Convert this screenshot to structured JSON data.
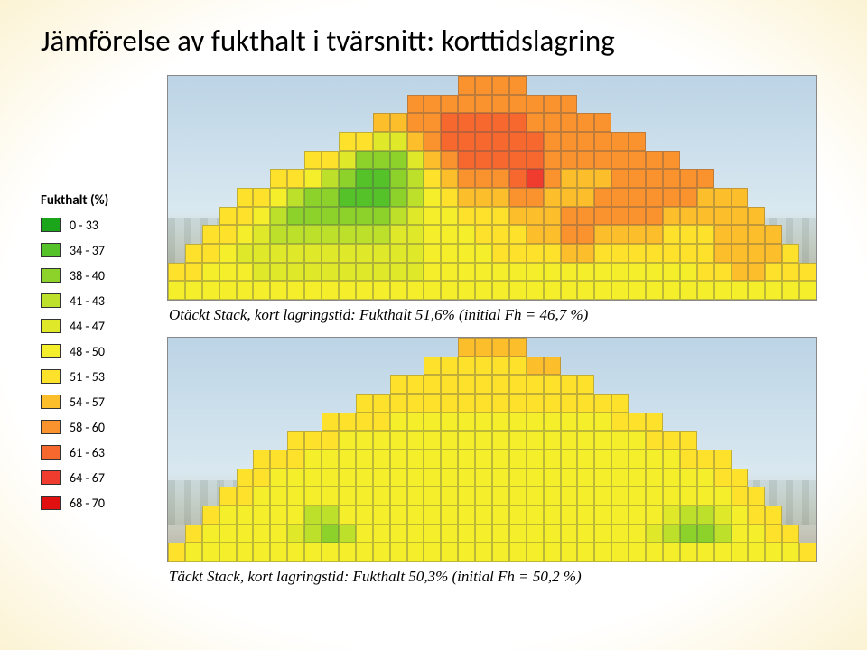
{
  "title": "Jämförelse av fukthalt i tvärsnitt: korttidslagring",
  "legend": {
    "title": "Fukthalt (%)",
    "bins": [
      {
        "label": "0 - 33",
        "color": "#1aa51a"
      },
      {
        "label": "34 - 37",
        "color": "#56c22a"
      },
      {
        "label": "38 - 40",
        "color": "#8dd22a"
      },
      {
        "label": "41 - 43",
        "color": "#bde02a"
      },
      {
        "label": "44 - 47",
        "color": "#e0e82a"
      },
      {
        "label": "48 - 50",
        "color": "#f5ee2a"
      },
      {
        "label": "51 - 53",
        "color": "#fde12a"
      },
      {
        "label": "54 - 57",
        "color": "#fcbf2b"
      },
      {
        "label": "58 - 60",
        "color": "#fa932d"
      },
      {
        "label": "61 - 63",
        "color": "#f6682e"
      },
      {
        "label": "64 - 67",
        "color": "#ef3c2e"
      },
      {
        "label": "68 - 70",
        "color": "#e01010"
      }
    ]
  },
  "chart1": {
    "caption": "Otäckt Stack, kort lagringstid: Fukthalt 51,6% (initial Fh = 46,7 %)",
    "type": "heatmap",
    "cols": 38,
    "rows": 12,
    "cell_border_color": "#555555",
    "background": "photo",
    "grid": [
      [
        -1,
        -1,
        -1,
        -1,
        -1,
        -1,
        -1,
        -1,
        -1,
        -1,
        -1,
        -1,
        -1,
        -1,
        -1,
        -1,
        -1,
        8,
        8,
        8,
        8,
        -1,
        -1,
        -1,
        -1,
        -1,
        -1,
        -1,
        -1,
        -1,
        -1,
        -1,
        -1,
        -1,
        -1,
        -1,
        -1,
        -1
      ],
      [
        -1,
        -1,
        -1,
        -1,
        -1,
        -1,
        -1,
        -1,
        -1,
        -1,
        -1,
        -1,
        -1,
        -1,
        8,
        8,
        8,
        8,
        8,
        8,
        8,
        8,
        8,
        8,
        -1,
        -1,
        -1,
        -1,
        -1,
        -1,
        -1,
        -1,
        -1,
        -1,
        -1,
        -1,
        -1,
        -1
      ],
      [
        -1,
        -1,
        -1,
        -1,
        -1,
        -1,
        -1,
        -1,
        -1,
        -1,
        -1,
        -1,
        7,
        7,
        8,
        8,
        9,
        9,
        9,
        9,
        9,
        8,
        8,
        8,
        8,
        8,
        -1,
        -1,
        -1,
        -1,
        -1,
        -1,
        -1,
        -1,
        -1,
        -1,
        -1,
        -1
      ],
      [
        -1,
        -1,
        -1,
        -1,
        -1,
        -1,
        -1,
        -1,
        -1,
        -1,
        6,
        6,
        4,
        4,
        7,
        8,
        9,
        9,
        9,
        9,
        9,
        9,
        8,
        8,
        8,
        8,
        8,
        8,
        -1,
        -1,
        -1,
        -1,
        -1,
        -1,
        -1,
        -1,
        -1,
        -1
      ],
      [
        -1,
        -1,
        -1,
        -1,
        -1,
        -1,
        -1,
        -1,
        6,
        6,
        4,
        2,
        2,
        2,
        4,
        7,
        8,
        9,
        9,
        9,
        9,
        9,
        8,
        8,
        8,
        8,
        8,
        8,
        8,
        8,
        -1,
        -1,
        -1,
        -1,
        -1,
        -1,
        -1,
        -1
      ],
      [
        -1,
        -1,
        -1,
        -1,
        -1,
        -1,
        6,
        6,
        5,
        3,
        2,
        1,
        1,
        2,
        3,
        6,
        7,
        8,
        8,
        8,
        9,
        10,
        8,
        7,
        7,
        7,
        8,
        8,
        8,
        8,
        8,
        8,
        -1,
        -1,
        -1,
        -1,
        -1,
        -1
      ],
      [
        -1,
        -1,
        -1,
        -1,
        6,
        6,
        5,
        3,
        2,
        2,
        1,
        1,
        1,
        2,
        3,
        5,
        6,
        7,
        7,
        7,
        8,
        8,
        7,
        7,
        7,
        8,
        8,
        8,
        8,
        8,
        8,
        7,
        7,
        7,
        -1,
        -1,
        -1,
        -1
      ],
      [
        -1,
        -1,
        -1,
        6,
        6,
        5,
        3,
        2,
        2,
        2,
        2,
        2,
        2,
        3,
        4,
        5,
        5,
        6,
        6,
        6,
        7,
        7,
        7,
        8,
        8,
        8,
        8,
        8,
        8,
        7,
        7,
        7,
        7,
        7,
        7,
        -1,
        -1,
        -1
      ],
      [
        -1,
        -1,
        6,
        6,
        5,
        4,
        3,
        3,
        3,
        3,
        3,
        3,
        3,
        4,
        4,
        5,
        5,
        5,
        6,
        6,
        6,
        7,
        7,
        8,
        8,
        7,
        7,
        7,
        7,
        6,
        6,
        6,
        7,
        7,
        7,
        7,
        -1,
        -1
      ],
      [
        -1,
        6,
        6,
        5,
        4,
        4,
        4,
        4,
        4,
        4,
        4,
        4,
        4,
        4,
        4,
        5,
        5,
        5,
        5,
        6,
        6,
        6,
        6,
        7,
        7,
        6,
        6,
        6,
        6,
        6,
        6,
        6,
        7,
        7,
        7,
        7,
        6,
        -1
      ],
      [
        6,
        6,
        5,
        5,
        5,
        4,
        4,
        4,
        4,
        4,
        4,
        4,
        4,
        4,
        4,
        5,
        5,
        5,
        5,
        5,
        5,
        5,
        5,
        5,
        5,
        5,
        5,
        5,
        5,
        5,
        5,
        6,
        6,
        7,
        7,
        6,
        6,
        6
      ],
      [
        5,
        5,
        5,
        5,
        5,
        5,
        5,
        5,
        5,
        5,
        5,
        5,
        5,
        5,
        5,
        5,
        5,
        5,
        5,
        5,
        5,
        5,
        5,
        5,
        5,
        5,
        5,
        5,
        5,
        5,
        5,
        5,
        5,
        5,
        5,
        5,
        5,
        5
      ]
    ]
  },
  "chart2": {
    "caption": "Täckt Stack, kort lagringstid: Fukthalt 50,3% (initial Fh = 50,2 %)",
    "type": "heatmap",
    "cols": 38,
    "rows": 12,
    "cell_border_color": "#555555",
    "background": "photo",
    "grid": [
      [
        -1,
        -1,
        -1,
        -1,
        -1,
        -1,
        -1,
        -1,
        -1,
        -1,
        -1,
        -1,
        -1,
        -1,
        -1,
        -1,
        -1,
        7,
        7,
        7,
        7,
        -1,
        -1,
        -1,
        -1,
        -1,
        -1,
        -1,
        -1,
        -1,
        -1,
        -1,
        -1,
        -1,
        -1,
        -1,
        -1,
        -1
      ],
      [
        -1,
        -1,
        -1,
        -1,
        -1,
        -1,
        -1,
        -1,
        -1,
        -1,
        -1,
        -1,
        -1,
        -1,
        -1,
        6,
        6,
        6,
        6,
        6,
        6,
        7,
        7,
        -1,
        -1,
        -1,
        -1,
        -1,
        -1,
        -1,
        -1,
        -1,
        -1,
        -1,
        -1,
        -1,
        -1,
        -1
      ],
      [
        -1,
        -1,
        -1,
        -1,
        -1,
        -1,
        -1,
        -1,
        -1,
        -1,
        -1,
        -1,
        -1,
        6,
        6,
        6,
        6,
        6,
        6,
        6,
        6,
        6,
        6,
        6,
        6,
        -1,
        -1,
        -1,
        -1,
        -1,
        -1,
        -1,
        -1,
        -1,
        -1,
        -1,
        -1,
        -1
      ],
      [
        -1,
        -1,
        -1,
        -1,
        -1,
        -1,
        -1,
        -1,
        -1,
        -1,
        -1,
        6,
        6,
        6,
        6,
        6,
        6,
        6,
        6,
        6,
        6,
        6,
        6,
        6,
        6,
        6,
        6,
        -1,
        -1,
        -1,
        -1,
        -1,
        -1,
        -1,
        -1,
        -1,
        -1,
        -1
      ],
      [
        -1,
        -1,
        -1,
        -1,
        -1,
        -1,
        -1,
        -1,
        -1,
        6,
        6,
        6,
        6,
        5,
        5,
        5,
        5,
        5,
        5,
        5,
        5,
        5,
        5,
        5,
        5,
        5,
        6,
        6,
        6,
        -1,
        -1,
        -1,
        -1,
        -1,
        -1,
        -1,
        -1,
        -1
      ],
      [
        -1,
        -1,
        -1,
        -1,
        -1,
        -1,
        -1,
        6,
        6,
        6,
        5,
        5,
        5,
        5,
        5,
        5,
        5,
        5,
        5,
        5,
        5,
        5,
        5,
        5,
        5,
        5,
        5,
        5,
        6,
        6,
        6,
        -1,
        -1,
        -1,
        -1,
        -1,
        -1,
        -1
      ],
      [
        -1,
        -1,
        -1,
        -1,
        -1,
        6,
        6,
        6,
        5,
        5,
        5,
        5,
        5,
        5,
        5,
        5,
        5,
        5,
        5,
        5,
        5,
        5,
        5,
        5,
        5,
        5,
        5,
        5,
        5,
        5,
        6,
        6,
        6,
        -1,
        -1,
        -1,
        -1,
        -1
      ],
      [
        -1,
        -1,
        -1,
        -1,
        6,
        6,
        5,
        5,
        5,
        5,
        5,
        5,
        5,
        5,
        5,
        5,
        5,
        5,
        5,
        5,
        5,
        5,
        5,
        5,
        5,
        5,
        5,
        5,
        5,
        5,
        5,
        5,
        6,
        6,
        -1,
        -1,
        -1,
        -1
      ],
      [
        -1,
        -1,
        -1,
        6,
        6,
        5,
        5,
        5,
        5,
        5,
        5,
        5,
        5,
        5,
        5,
        5,
        5,
        5,
        5,
        5,
        5,
        5,
        5,
        5,
        5,
        5,
        5,
        5,
        5,
        5,
        5,
        5,
        5,
        6,
        6,
        -1,
        -1,
        -1
      ],
      [
        -1,
        -1,
        6,
        5,
        5,
        5,
        5,
        5,
        3,
        3,
        5,
        5,
        5,
        5,
        5,
        5,
        5,
        5,
        5,
        5,
        5,
        5,
        5,
        5,
        5,
        5,
        5,
        5,
        5,
        4,
        3,
        3,
        4,
        5,
        6,
        6,
        -1,
        -1
      ],
      [
        -1,
        6,
        5,
        5,
        5,
        5,
        5,
        4,
        3,
        2,
        3,
        5,
        5,
        5,
        5,
        5,
        5,
        5,
        5,
        5,
        5,
        5,
        5,
        5,
        5,
        5,
        5,
        5,
        4,
        3,
        2,
        2,
        3,
        5,
        5,
        6,
        6,
        -1
      ],
      [
        6,
        5,
        5,
        5,
        5,
        5,
        5,
        5,
        5,
        5,
        5,
        5,
        5,
        5,
        5,
        5,
        5,
        5,
        5,
        5,
        5,
        5,
        5,
        5,
        5,
        5,
        5,
        5,
        5,
        5,
        5,
        5,
        5,
        5,
        5,
        5,
        5,
        6
      ]
    ]
  }
}
